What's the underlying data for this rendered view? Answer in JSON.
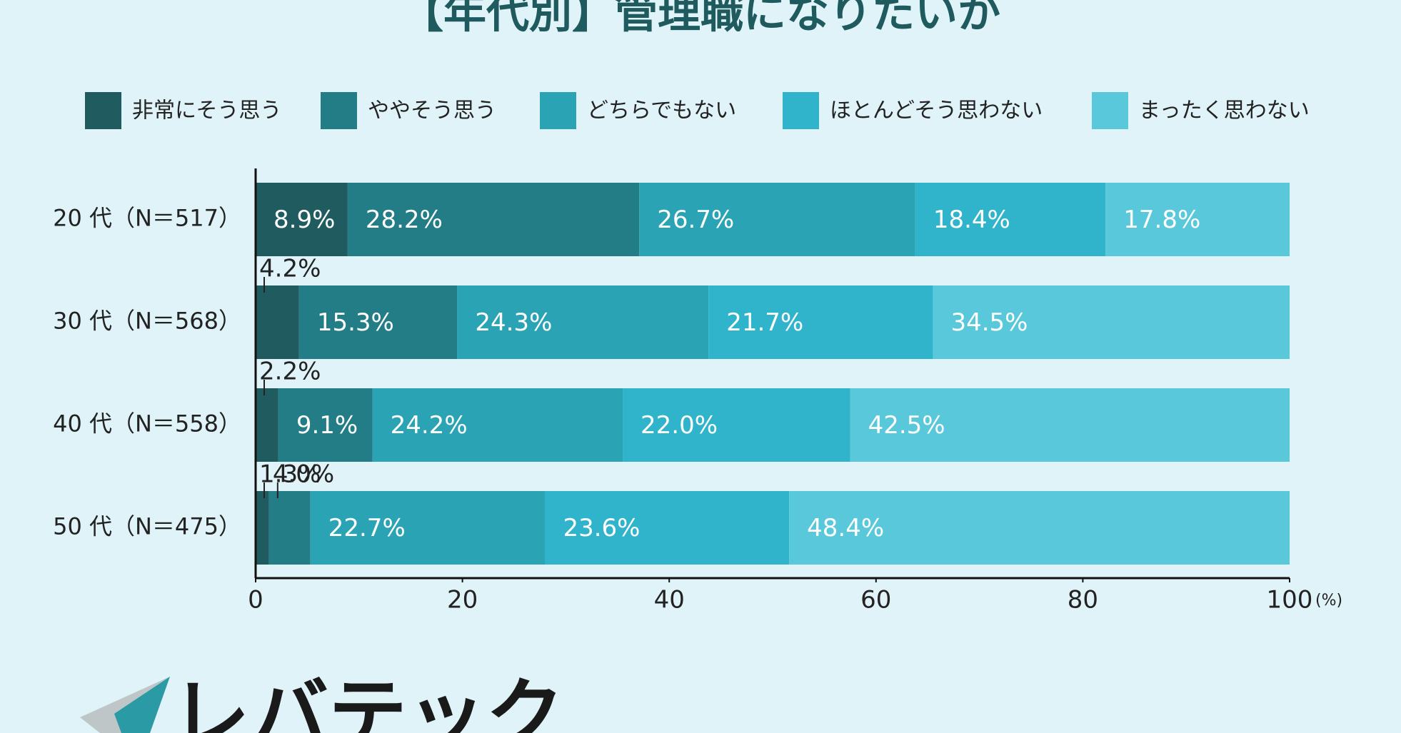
{
  "chart_data": {
    "type": "stacked-bar-horizontal",
    "title": "【年代別】管理職になりたいか",
    "categories": [
      "20 代（N＝517）",
      "30 代（N＝568）",
      "40 代（N＝558）",
      "50 代（N＝475）"
    ],
    "series": [
      {
        "name": "非常にそう思う",
        "color": "#1f5b5f",
        "values": [
          8.9,
          4.2,
          2.2,
          1.3
        ],
        "value_labels": [
          "8.9%",
          "4.2%",
          "2.2%",
          "1.3%"
        ]
      },
      {
        "name": "ややそう思う",
        "color": "#237d86",
        "values": [
          28.2,
          15.3,
          9.1,
          4.0
        ],
        "value_labels": [
          "28.2%",
          "15.3%",
          "9.1%",
          "4.0%"
        ]
      },
      {
        "name": "どちらでもない",
        "color": "#2aa3b5",
        "values": [
          26.7,
          24.3,
          24.2,
          22.7
        ],
        "value_labels": [
          "26.7%",
          "24.3%",
          "24.2%",
          "22.7%"
        ]
      },
      {
        "name": "ほとんどそう思わない",
        "color": "#2fb4cb",
        "values": [
          18.4,
          21.7,
          22.0,
          23.6
        ],
        "value_labels": [
          "18.4%",
          "21.7%",
          "22.0%",
          "23.6%"
        ]
      },
      {
        "name": "まったく思わない",
        "color": "#58c8da",
        "values": [
          17.8,
          34.5,
          42.5,
          48.4
        ],
        "value_labels": [
          "17.8%",
          "34.5%",
          "42.5%",
          "48.4%"
        ]
      }
    ],
    "xlim": [
      0,
      100
    ],
    "xticks": [
      0,
      20,
      40,
      60,
      80,
      100
    ],
    "xunit": "(%)",
    "legend": "top"
  },
  "logo": "レバテック"
}
